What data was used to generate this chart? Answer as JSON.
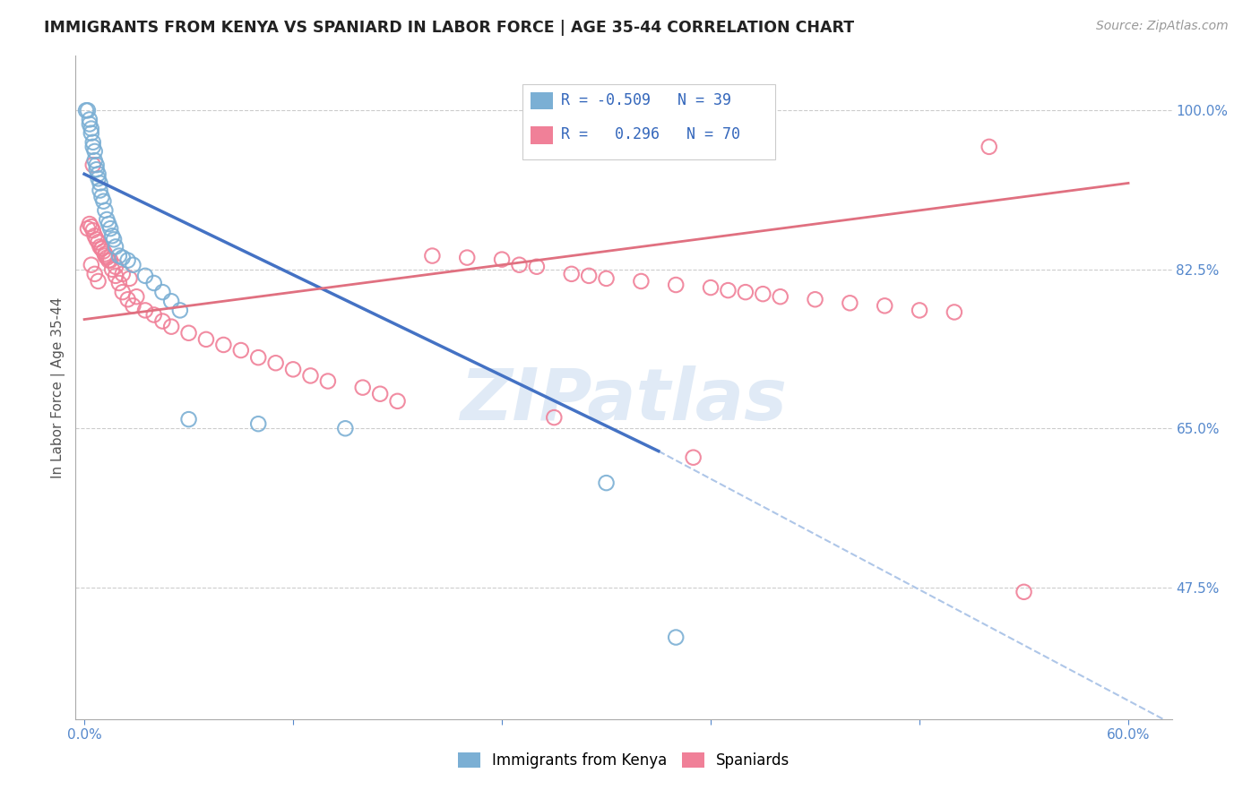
{
  "title": "IMMIGRANTS FROM KENYA VS SPANIARD IN LABOR FORCE | AGE 35-44 CORRELATION CHART",
  "source": "Source: ZipAtlas.com",
  "ylabel": "In Labor Force | Age 35-44",
  "xlim": [
    -0.005,
    0.625
  ],
  "ylim": [
    0.33,
    1.06
  ],
  "xtick_positions": [
    0.0,
    0.12,
    0.24,
    0.36,
    0.48,
    0.6
  ],
  "xticklabels": [
    "0.0%",
    "",
    "",
    "",
    "",
    "60.0%"
  ],
  "ytick_right_positions": [
    1.0,
    0.825,
    0.65,
    0.475
  ],
  "ytick_right_labels": [
    "100.0%",
    "82.5%",
    "65.0%",
    "47.5%"
  ],
  "kenya_circle_color": "#7bafd4",
  "spaniard_circle_color": "#f08098",
  "kenya_line_color": "#4472c4",
  "spaniard_line_color": "#e07080",
  "dashed_line_color": "#aec6e8",
  "legend_kenya_label": "Immigrants from Kenya",
  "legend_spaniard_label": "Spaniards",
  "r_kenya": "-0.509",
  "n_kenya": "39",
  "r_spaniard": "0.296",
  "n_spaniard": "70",
  "watermark": "ZIPatlas",
  "kenya_x": [
    0.001,
    0.002,
    0.003,
    0.003,
    0.004,
    0.004,
    0.005,
    0.005,
    0.006,
    0.006,
    0.007,
    0.007,
    0.008,
    0.008,
    0.009,
    0.009,
    0.01,
    0.011,
    0.012,
    0.013,
    0.014,
    0.015,
    0.016,
    0.017,
    0.018,
    0.02,
    0.022,
    0.025,
    0.028,
    0.035,
    0.04,
    0.045,
    0.05,
    0.055,
    0.06,
    0.1,
    0.15,
    0.3,
    0.34
  ],
  "kenya_y": [
    1.0,
    1.0,
    0.99,
    0.985,
    0.98,
    0.975,
    0.965,
    0.96,
    0.955,
    0.945,
    0.94,
    0.935,
    0.93,
    0.925,
    0.92,
    0.912,
    0.905,
    0.9,
    0.89,
    0.88,
    0.875,
    0.87,
    0.862,
    0.858,
    0.85,
    0.84,
    0.838,
    0.835,
    0.83,
    0.818,
    0.81,
    0.8,
    0.79,
    0.78,
    0.66,
    0.655,
    0.65,
    0.59,
    0.42
  ],
  "spaniard_x": [
    0.002,
    0.003,
    0.004,
    0.005,
    0.005,
    0.006,
    0.007,
    0.008,
    0.009,
    0.01,
    0.011,
    0.012,
    0.013,
    0.014,
    0.016,
    0.018,
    0.02,
    0.022,
    0.025,
    0.028,
    0.03,
    0.035,
    0.04,
    0.045,
    0.05,
    0.06,
    0.07,
    0.08,
    0.09,
    0.1,
    0.11,
    0.12,
    0.13,
    0.14,
    0.16,
    0.17,
    0.18,
    0.2,
    0.22,
    0.24,
    0.25,
    0.26,
    0.27,
    0.28,
    0.29,
    0.3,
    0.32,
    0.34,
    0.35,
    0.36,
    0.37,
    0.38,
    0.39,
    0.4,
    0.42,
    0.44,
    0.46,
    0.48,
    0.5,
    0.52,
    0.004,
    0.006,
    0.008,
    0.01,
    0.012,
    0.015,
    0.018,
    0.022,
    0.026,
    0.54
  ],
  "spaniard_y": [
    0.87,
    0.875,
    0.872,
    0.868,
    0.94,
    0.862,
    0.858,
    0.855,
    0.85,
    0.848,
    0.845,
    0.842,
    0.838,
    0.835,
    0.825,
    0.818,
    0.81,
    0.8,
    0.792,
    0.785,
    0.795,
    0.78,
    0.775,
    0.768,
    0.762,
    0.755,
    0.748,
    0.742,
    0.736,
    0.728,
    0.722,
    0.715,
    0.708,
    0.702,
    0.695,
    0.688,
    0.68,
    0.84,
    0.838,
    0.836,
    0.83,
    0.828,
    0.662,
    0.82,
    0.818,
    0.815,
    0.812,
    0.808,
    0.618,
    0.805,
    0.802,
    0.8,
    0.798,
    0.795,
    0.792,
    0.788,
    0.785,
    0.78,
    0.778,
    0.96,
    0.83,
    0.82,
    0.812,
    0.848,
    0.84,
    0.835,
    0.828,
    0.82,
    0.815,
    0.47
  ],
  "kenya_line_x": [
    0.0,
    0.33
  ],
  "kenya_line_y": [
    0.93,
    0.625
  ],
  "spaniard_line_x": [
    0.0,
    0.6
  ],
  "spaniard_line_y": [
    0.77,
    0.92
  ],
  "dash_line_x": [
    0.33,
    0.62
  ],
  "dash_line_y": [
    0.625,
    0.33
  ]
}
